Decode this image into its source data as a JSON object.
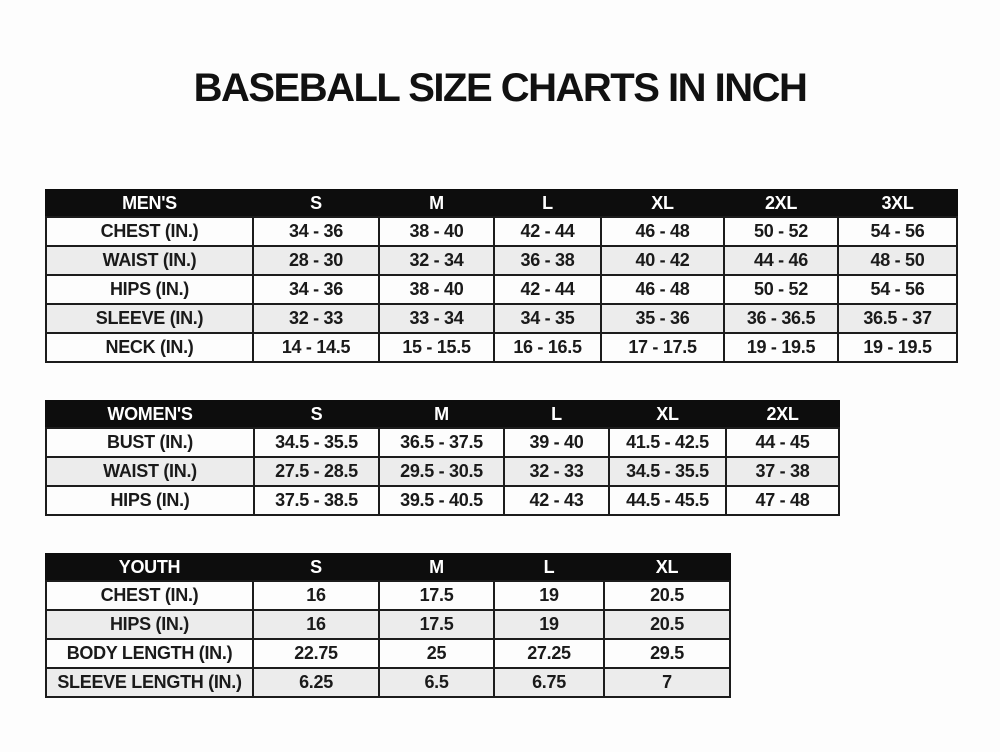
{
  "title": "BASEBALL SIZE CHARTS IN INCH",
  "colors": {
    "header_bg": "#0d0d0d",
    "header_text": "#ffffff",
    "row_bg": "#fdfdfd",
    "row_alt_bg": "#ececec",
    "border": "#1c1c1c",
    "text": "#1a1a1a",
    "page_bg": "#fdfdfd"
  },
  "chart_data": [
    {
      "type": "table",
      "name": "mens-size-chart",
      "header": [
        "MEN'S",
        "S",
        "M",
        "L",
        "XL",
        "2XL",
        "3XL"
      ],
      "rows": [
        [
          "CHEST (IN.)",
          "34 - 36",
          "38 - 40",
          "42 - 44",
          "46 - 48",
          "50 - 52",
          "54 - 56"
        ],
        [
          "WAIST (IN.)",
          "28 - 30",
          "32 - 34",
          "36 - 38",
          "40 - 42",
          "44 - 46",
          "48 - 50"
        ],
        [
          "HIPS (IN.)",
          "34 - 36",
          "38 - 40",
          "42 - 44",
          "46 - 48",
          "50 - 52",
          "54 - 56"
        ],
        [
          "SLEEVE (IN.)",
          "32 - 33",
          "33 - 34",
          "34 - 35",
          "35 - 36",
          "36 - 36.5",
          "36.5 - 37"
        ],
        [
          "NECK (IN.)",
          "14 - 14.5",
          "15 - 15.5",
          "16 - 16.5",
          "17 - 17.5",
          "19 - 19.5",
          "19 - 19.5"
        ]
      ]
    },
    {
      "type": "table",
      "name": "womens-size-chart",
      "header": [
        "WOMEN'S",
        "S",
        "M",
        "L",
        "XL",
        "2XL"
      ],
      "rows": [
        [
          "BUST (IN.)",
          "34.5 - 35.5",
          "36.5 - 37.5",
          "39 - 40",
          "41.5 - 42.5",
          "44 - 45"
        ],
        [
          "WAIST (IN.)",
          "27.5 - 28.5",
          "29.5 - 30.5",
          "32 - 33",
          "34.5 - 35.5",
          "37 - 38"
        ],
        [
          "HIPS (IN.)",
          "37.5 - 38.5",
          "39.5 - 40.5",
          "42 - 43",
          "44.5 - 45.5",
          "47 - 48"
        ]
      ]
    },
    {
      "type": "table",
      "name": "youth-size-chart",
      "header": [
        "YOUTH",
        "S",
        "M",
        "L",
        "XL"
      ],
      "rows": [
        [
          "CHEST (IN.)",
          "16",
          "17.5",
          "19",
          "20.5"
        ],
        [
          "HIPS (IN.)",
          "16",
          "17.5",
          "19",
          "20.5"
        ],
        [
          "BODY LENGTH (IN.)",
          "22.75",
          "25",
          "27.25",
          "29.5"
        ],
        [
          "SLEEVE LENGTH (IN.)",
          "6.25",
          "6.5",
          "6.75",
          "7"
        ]
      ]
    }
  ]
}
